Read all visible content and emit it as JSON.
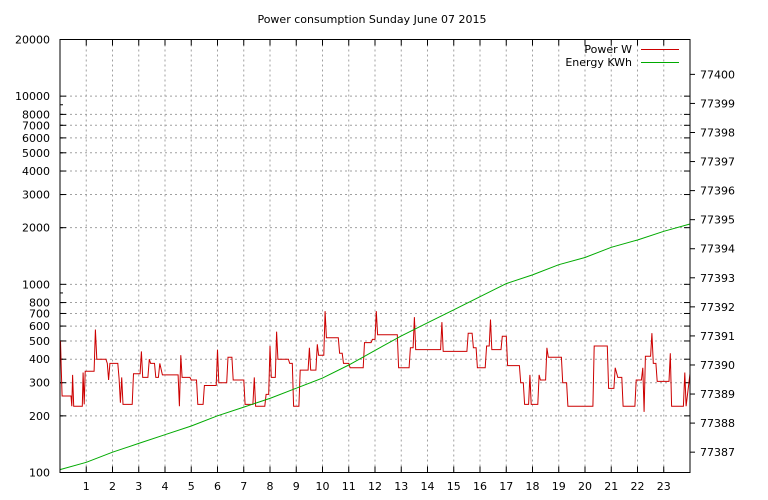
{
  "chart_data": {
    "type": "line",
    "title": "Power consumption Sunday June 07 2015",
    "xlabel": "",
    "ylabel": "",
    "y2label": "",
    "grid": true,
    "legend_position": "top-right",
    "x_range": [
      0,
      24
    ],
    "x_ticks": [
      "1",
      "2",
      "3",
      "4",
      "5",
      "6",
      "7",
      "8",
      "9",
      "10",
      "11",
      "12",
      "13",
      "14",
      "15",
      "16",
      "17",
      "18",
      "19",
      "20",
      "21",
      "22",
      "23"
    ],
    "y_scale": "log",
    "y_range": [
      100,
      20000
    ],
    "y_ticks": [
      "100",
      "200",
      "300",
      "400",
      "500",
      "600",
      "700",
      "800",
      "1000",
      "2000",
      "3000",
      "4000",
      "5000",
      "6000",
      "7000",
      "8000",
      "10000",
      "20000"
    ],
    "y2_scale": "linear",
    "y2_range": [
      77386.3,
      77401.2
    ],
    "y2_ticks": [
      "77387",
      "77388",
      "77389",
      "77390",
      "77391",
      "77392",
      "77393",
      "77394",
      "77395",
      "77396",
      "77397",
      "77398",
      "77399",
      "77400"
    ],
    "series": [
      {
        "name": "Power W",
        "axis": "y",
        "color": "#cc0000",
        "points": [
          [
            0.0,
            400
          ],
          [
            0.02,
            500
          ],
          [
            0.05,
            350
          ],
          [
            0.08,
            255
          ],
          [
            0.42,
            255
          ],
          [
            0.45,
            225
          ],
          [
            0.48,
            330
          ],
          [
            0.52,
            225
          ],
          [
            0.85,
            225
          ],
          [
            0.88,
            340
          ],
          [
            0.92,
            230
          ],
          [
            0.96,
            345
          ],
          [
            1.3,
            345
          ],
          [
            1.35,
            575
          ],
          [
            1.4,
            400
          ],
          [
            1.75,
            400
          ],
          [
            1.8,
            380
          ],
          [
            1.85,
            310
          ],
          [
            1.9,
            380
          ],
          [
            2.2,
            380
          ],
          [
            2.25,
            315
          ],
          [
            2.3,
            235
          ],
          [
            2.35,
            320
          ],
          [
            2.4,
            230
          ],
          [
            2.75,
            230
          ],
          [
            2.8,
            335
          ],
          [
            3.05,
            335
          ],
          [
            3.1,
            440
          ],
          [
            3.15,
            320
          ],
          [
            3.35,
            320
          ],
          [
            3.4,
            400
          ],
          [
            3.45,
            380
          ],
          [
            3.6,
            380
          ],
          [
            3.65,
            320
          ],
          [
            3.75,
            320
          ],
          [
            3.8,
            380
          ],
          [
            3.9,
            330
          ],
          [
            4.5,
            330
          ],
          [
            4.55,
            225
          ],
          [
            4.6,
            420
          ],
          [
            4.65,
            320
          ],
          [
            4.95,
            320
          ],
          [
            5.0,
            310
          ],
          [
            5.2,
            310
          ],
          [
            5.25,
            230
          ],
          [
            5.45,
            230
          ],
          [
            5.5,
            290
          ],
          [
            5.95,
            290
          ],
          [
            6.0,
            450
          ],
          [
            6.05,
            300
          ],
          [
            6.35,
            300
          ],
          [
            6.4,
            410
          ],
          [
            6.55,
            410
          ],
          [
            6.6,
            310
          ],
          [
            7.0,
            310
          ],
          [
            7.05,
            230
          ],
          [
            7.35,
            230
          ],
          [
            7.4,
            320
          ],
          [
            7.45,
            225
          ],
          [
            7.8,
            225
          ],
          [
            7.85,
            260
          ],
          [
            7.95,
            260
          ],
          [
            8.0,
            470
          ],
          [
            8.05,
            320
          ],
          [
            8.2,
            320
          ],
          [
            8.25,
            560
          ],
          [
            8.3,
            400
          ],
          [
            8.7,
            400
          ],
          [
            8.75,
            380
          ],
          [
            8.85,
            380
          ],
          [
            8.9,
            225
          ],
          [
            9.1,
            225
          ],
          [
            9.15,
            350
          ],
          [
            9.45,
            350
          ],
          [
            9.5,
            460
          ],
          [
            9.55,
            350
          ],
          [
            9.75,
            350
          ],
          [
            9.8,
            480
          ],
          [
            9.85,
            420
          ],
          [
            10.05,
            420
          ],
          [
            10.1,
            720
          ],
          [
            10.15,
            520
          ],
          [
            10.6,
            520
          ],
          [
            10.65,
            430
          ],
          [
            10.75,
            430
          ],
          [
            10.8,
            380
          ],
          [
            11.0,
            380
          ],
          [
            11.05,
            360
          ],
          [
            11.55,
            360
          ],
          [
            11.6,
            490
          ],
          [
            11.85,
            490
          ],
          [
            11.9,
            510
          ],
          [
            12.0,
            510
          ],
          [
            12.05,
            720
          ],
          [
            12.1,
            540
          ],
          [
            12.85,
            540
          ],
          [
            12.9,
            360
          ],
          [
            13.3,
            360
          ],
          [
            13.35,
            460
          ],
          [
            13.45,
            460
          ],
          [
            13.5,
            670
          ],
          [
            13.55,
            450
          ],
          [
            14.5,
            450
          ],
          [
            14.55,
            630
          ],
          [
            14.6,
            440
          ],
          [
            15.5,
            440
          ],
          [
            15.55,
            550
          ],
          [
            15.7,
            550
          ],
          [
            15.75,
            460
          ],
          [
            15.85,
            460
          ],
          [
            15.9,
            360
          ],
          [
            16.2,
            360
          ],
          [
            16.25,
            470
          ],
          [
            16.35,
            470
          ],
          [
            16.4,
            650
          ],
          [
            16.45,
            450
          ],
          [
            16.8,
            450
          ],
          [
            16.85,
            530
          ],
          [
            17.0,
            530
          ],
          [
            17.05,
            370
          ],
          [
            17.5,
            370
          ],
          [
            17.55,
            300
          ],
          [
            17.65,
            300
          ],
          [
            17.7,
            230
          ],
          [
            17.85,
            230
          ],
          [
            17.9,
            330
          ],
          [
            17.95,
            230
          ],
          [
            18.2,
            230
          ],
          [
            18.25,
            330
          ],
          [
            18.3,
            310
          ],
          [
            18.5,
            310
          ],
          [
            18.55,
            460
          ],
          [
            18.6,
            410
          ],
          [
            19.1,
            410
          ],
          [
            19.15,
            300
          ],
          [
            19.3,
            300
          ],
          [
            19.35,
            225
          ],
          [
            20.3,
            225
          ],
          [
            20.35,
            470
          ],
          [
            20.85,
            470
          ],
          [
            20.9,
            280
          ],
          [
            21.1,
            280
          ],
          [
            21.15,
            360
          ],
          [
            21.25,
            320
          ],
          [
            21.4,
            320
          ],
          [
            21.45,
            225
          ],
          [
            21.9,
            225
          ],
          [
            21.95,
            310
          ],
          [
            22.15,
            310
          ],
          [
            22.2,
            360
          ],
          [
            22.25,
            210
          ],
          [
            22.3,
            415
          ],
          [
            22.5,
            415
          ],
          [
            22.55,
            550
          ],
          [
            22.6,
            380
          ],
          [
            22.7,
            380
          ],
          [
            22.75,
            305
          ],
          [
            23.2,
            305
          ],
          [
            23.25,
            430
          ],
          [
            23.3,
            225
          ],
          [
            23.75,
            225
          ],
          [
            23.8,
            340
          ],
          [
            23.85,
            225
          ],
          [
            24.0,
            335
          ]
        ]
      },
      {
        "name": "Energy KWh",
        "axis": "y2",
        "color": "#00aa00",
        "points": [
          [
            0.0,
            77386.4
          ],
          [
            1.0,
            77386.65
          ],
          [
            2.0,
            77387.0
          ],
          [
            3.0,
            77387.3
          ],
          [
            4.0,
            77387.6
          ],
          [
            5.0,
            77387.9
          ],
          [
            6.0,
            77388.25
          ],
          [
            7.0,
            77388.55
          ],
          [
            8.0,
            77388.85
          ],
          [
            9.0,
            77389.2
          ],
          [
            10.0,
            77389.55
          ],
          [
            11.0,
            77390.0
          ],
          [
            12.0,
            77390.5
          ],
          [
            13.0,
            77391.0
          ],
          [
            14.0,
            77391.45
          ],
          [
            15.0,
            77391.9
          ],
          [
            16.0,
            77392.35
          ],
          [
            17.0,
            77392.8
          ],
          [
            18.0,
            77393.1
          ],
          [
            19.0,
            77393.45
          ],
          [
            20.0,
            77393.7
          ],
          [
            21.0,
            77394.05
          ],
          [
            22.0,
            77394.3
          ],
          [
            23.0,
            77394.6
          ],
          [
            24.0,
            77394.85
          ]
        ]
      }
    ]
  }
}
